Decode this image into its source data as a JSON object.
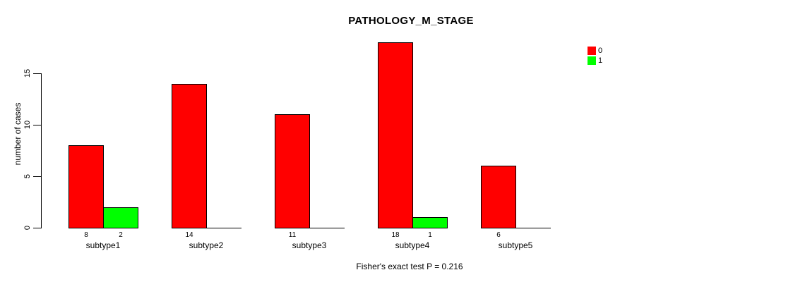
{
  "chart_data": {
    "type": "bar",
    "title": "PATHOLOGY_M_STAGE",
    "ylabel": "number of cases",
    "xlabel": "",
    "caption": "Fisher's exact test P = 0.216",
    "categories": [
      "subtype1",
      "subtype2",
      "subtype3",
      "subtype4",
      "subtype5"
    ],
    "series": [
      {
        "name": "0",
        "color": "#FF0000",
        "values": [
          8,
          14,
          11,
          18,
          6
        ]
      },
      {
        "name": "1",
        "color": "#00FF00",
        "values": [
          2,
          0,
          0,
          1,
          0
        ]
      }
    ],
    "value_labels": {
      "subtype1": [
        8,
        2
      ],
      "subtype2": [
        14,
        0
      ],
      "subtype3": [
        11,
        0
      ],
      "subtype4": [
        18,
        1
      ],
      "subtype5": [
        6,
        0
      ]
    },
    "yticks": [
      0,
      5,
      10,
      15
    ],
    "ylim": [
      0,
      18
    ],
    "grid": false,
    "legend_position": "right",
    "bar_border_color": "#000000",
    "background_color": "#FFFFFF",
    "text_color": "#000000"
  }
}
